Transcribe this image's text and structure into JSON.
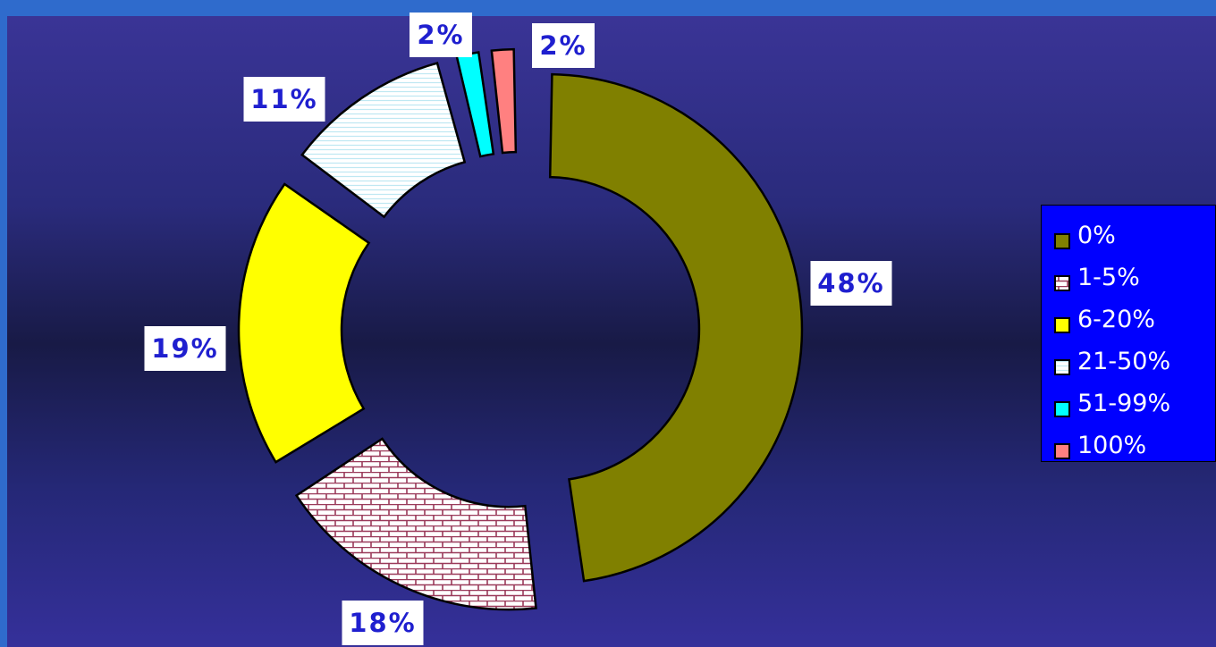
{
  "chart_data": {
    "type": "pie",
    "style": "doughnut-exploded",
    "title": "",
    "categories": [
      "0%",
      "1-5%",
      "6-20%",
      "21-50%",
      "51-99%",
      "100%"
    ],
    "values": [
      48,
      18,
      19,
      11,
      2,
      2
    ],
    "data_labels": [
      "48%",
      "18%",
      "19%",
      "11%",
      "2%",
      "2%"
    ],
    "colors": [
      "#808000",
      "#ffffff",
      "#ffff00",
      "#f2ffff",
      "#00ffff",
      "#ff8080"
    ],
    "patterns": [
      "solid",
      "brick",
      "solid",
      "horizontal-lines",
      "solid",
      "solid"
    ],
    "legend_position": "right"
  }
}
